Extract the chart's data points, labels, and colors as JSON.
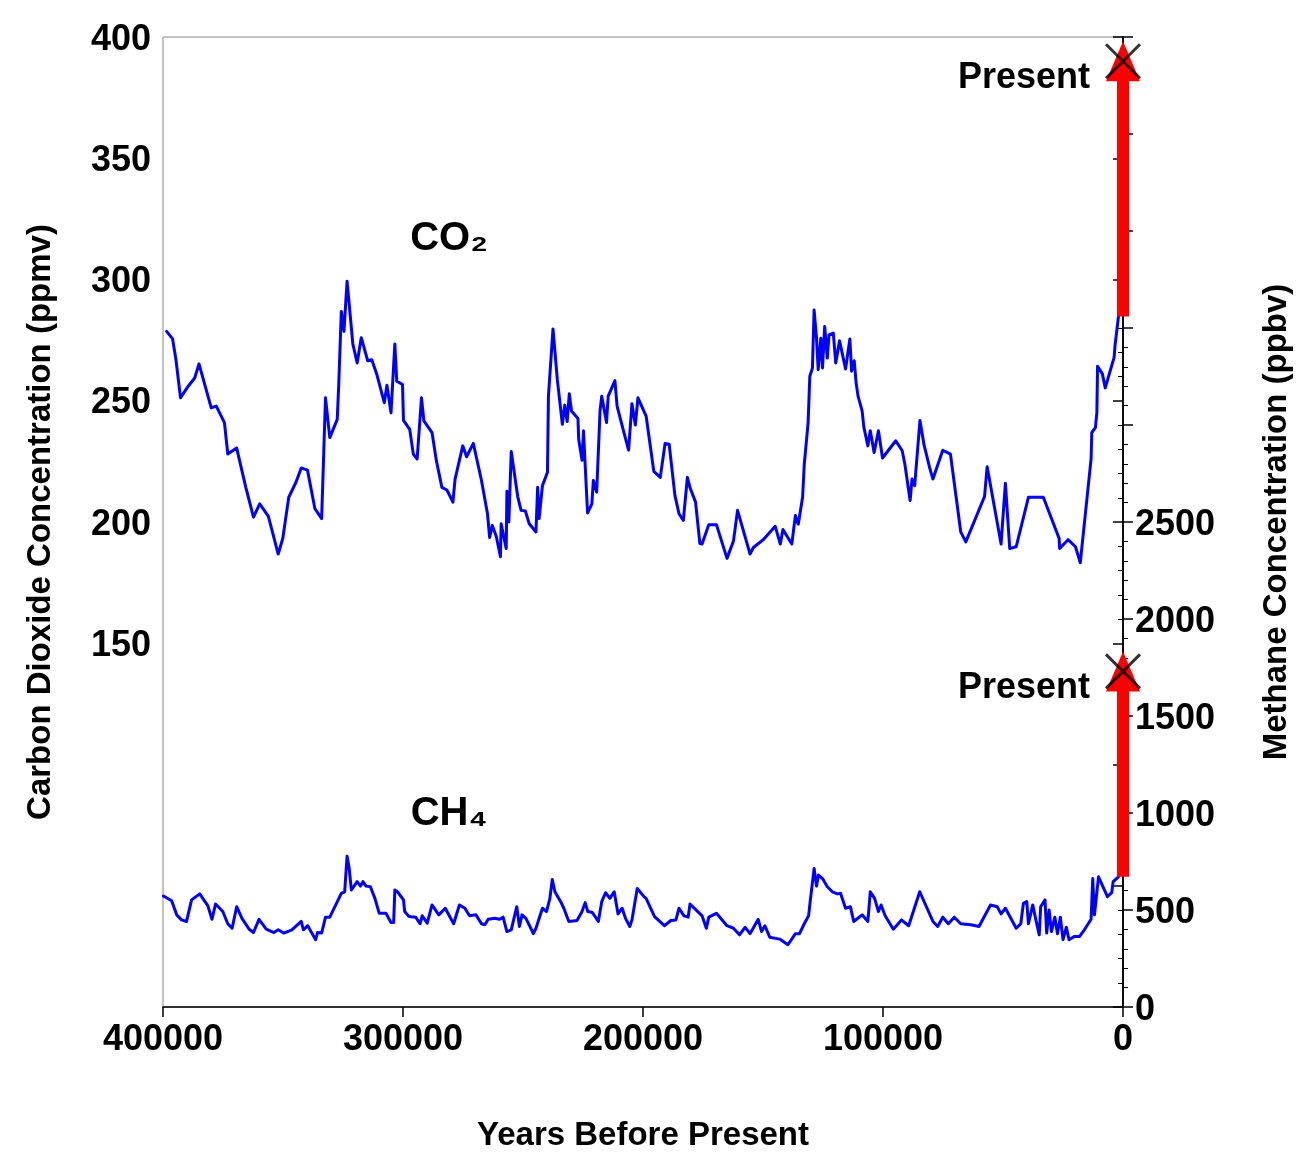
{
  "chart_data": {
    "type": "line",
    "xlabel": "Years Before Present",
    "ylabel": "Carbon Dioxide Concentration (ppmv)",
    "y2label": "Methane Concentration (ppbv)",
    "xlim": [
      400000,
      0
    ],
    "xticks": [
      400000,
      300000,
      200000,
      100000,
      0
    ],
    "ylim": [
      0,
      400
    ],
    "yticks": [
      {
        "value": 0,
        "label": null
      },
      {
        "value": 50,
        "label": null
      },
      {
        "value": 100,
        "label": null
      },
      150,
      200,
      250,
      300,
      350,
      400
    ],
    "y2lim": [
      0,
      5000
    ],
    "y2ticks": [
      0,
      500,
      1000,
      1500,
      2000,
      2500,
      {
        "value": 3000,
        "label": null
      },
      {
        "value": 3500,
        "label": null
      },
      {
        "value": 4000,
        "label": null
      },
      {
        "value": 4500,
        "label": null
      },
      {
        "value": 5000,
        "label": null
      }
    ],
    "grid": false,
    "legend": false,
    "line_style": "solid",
    "marker": "none",
    "annotations": [
      "Present",
      "Present"
    ],
    "series": [
      {
        "name": "CO₂",
        "color": "#0000ff",
        "x": [
          398500,
          396000,
          394600,
          392700,
          389500,
          386800,
          385000,
          379900,
          377800,
          374400,
          373000,
          369300,
          365500,
          362300,
          359700,
          356100,
          352000,
          350100,
          347600,
          344600,
          342400,
          339800,
          336700,
          333900,
          332300,
          330500,
          327400,
          326800,
          325700,
          324600,
          323300,
          320900,
          319100,
          317400,
          314700,
          313000,
          310800,
          307800,
          306700,
          305000,
          303400,
          302600,
          300200,
          299800,
          297200,
          295700,
          294100,
          292300,
          291300,
          287900,
          286100,
          283800,
          281700,
          279200,
          278300,
          275100,
          273500,
          270700,
          267300,
          264800,
          263900,
          262800,
          261100,
          259400,
          259100,
          257000,
          256700,
          255900,
          254900,
          252200,
          250800,
          249000,
          247400,
          244600,
          243900,
          243300,
          241900,
          239800,
          239400,
          237500,
          235700,
          233600,
          232600,
          231600,
          230700,
          229800,
          227100,
          226800,
          225400,
          224800,
          223100,
          221300,
          220700,
          219300,
          217900,
          217200,
          215200,
          214500,
          211700,
          210800,
          208300,
          206000,
          204600,
          203200,
          202100,
          198700,
          195500,
          192800,
          190800,
          189100,
          186700,
          185000,
          183200,
          181500,
          180400,
          178100,
          176300,
          175400,
          172600,
          169400,
          165000,
          162300,
          160600,
          155400,
          154000,
          149900,
          144900,
          142800,
          141700,
          138000,
          136500,
          135300,
          133500,
          132800,
          131200,
          130500,
          129400,
          128700,
          127700,
          127000,
          125900,
          125200,
          124300,
          123200,
          122500,
          120700,
          119700,
          118100,
          115600,
          113800,
          113100,
          112000,
          111200,
          110400,
          108700,
          108000,
          106300,
          105300,
          103700,
          101900,
          100200,
          94700,
          92000,
          90900,
          88700,
          87900,
          86800,
          84600,
          82900,
          80600,
          79200,
          75100,
          71900,
          67600,
          65500,
          57700,
          56600,
          50800,
          49000,
          47200,
          44500,
          39400,
          33200,
          26600,
          26400,
          22900,
          19800,
          17800,
          13300,
          13000,
          11500,
          10900,
          10600,
          8600,
          7400,
          3700,
          3300,
          1900
        ],
        "values": [
          278.6,
          275.5,
          266.9,
          251.2,
          256,
          259.4,
          265.2,
          247.1,
          247.8,
          241,
          228,
          230.5,
          214.3,
          202,
          207.5,
          202.3,
          186.8,
          193.2,
          210.2,
          216.4,
          222.3,
          221.4,
          205.5,
          201.4,
          251.2,
          234.8,
          242.3,
          256,
          286.8,
          278.6,
          299.3,
          273.4,
          265.6,
          276,
          266.5,
          266.9,
          260.5,
          249.2,
          256.4,
          245,
          273.4,
          258.1,
          256.7,
          241.9,
          238.2,
          228,
          226,
          251.2,
          241.7,
          236.9,
          225.3,
          214.3,
          213.2,
          208.2,
          217.7,
          231.4,
          226.9,
          232.4,
          217.1,
          203.4,
          193.6,
          198.6,
          193.9,
          185.7,
          199.3,
          189.1,
          212.7,
          200,
          229.1,
          210.5,
          204.8,
          204.5,
          199.3,
          195.9,
          214.3,
          201.4,
          215,
          220.5,
          251.9,
          279.6,
          258.7,
          240.3,
          248.2,
          241.4,
          252.9,
          245.8,
          242.7,
          234.1,
          225.5,
          237.6,
          203.7,
          207.5,
          217.1,
          212.3,
          245.8,
          251.9,
          241,
          251.9,
          258.3,
          247.8,
          238.2,
          229.6,
          248.8,
          240,
          251.2,
          243.7,
          220.9,
          218.4,
          232.4,
          232.1,
          211,
          203.4,
          200.7,
          218.4,
          214.1,
          208.2,
          191.1,
          190.9,
          198.9,
          198.9,
          185,
          192.2,
          204.8,
          186.8,
          189.5,
          192.7,
          198.2,
          190.9,
          196.9,
          190.9,
          202.7,
          199.1,
          210.2,
          223.9,
          241,
          260.1,
          263.5,
          287.4,
          275.8,
          262.8,
          275.8,
          263.5,
          280.6,
          267.6,
          277.2,
          277.9,
          265.6,
          274.7,
          263.1,
          275.5,
          262.2,
          266.5,
          257.4,
          251.9,
          245.8,
          239.2,
          231.4,
          237.6,
          228.7,
          237.6,
          226.4,
          233.5,
          229.4,
          223.9,
          208.9,
          217.7,
          215,
          241.9,
          231.8,
          222.5,
          217.7,
          229.6,
          228,
          195.9,
          191.8,
          210.5,
          222.8,
          190.9,
          216,
          189.1,
          189.8,
          210.2,
          210.2,
          193.2,
          189.1,
          192.7,
          189.8,
          183.2,
          226,
          236.9,
          238.9,
          245,
          264.2,
          261.1,
          255.3,
          267.9,
          273,
          284.7
        ]
      },
      {
        "name": "CH₄",
        "color": "#0000ff",
        "axis": "y2",
        "x": [
          399800,
          396400,
          394300,
          392300,
          390200,
          388100,
          384700,
          381300,
          379600,
          378100,
          375100,
          373000,
          371200,
          369300,
          367100,
          364100,
          362300,
          360000,
          357000,
          353800,
          352000,
          349700,
          346300,
          342400,
          341500,
          339700,
          336400,
          335600,
          333900,
          332300,
          330500,
          325700,
          324300,
          323300,
          322500,
          321500,
          319100,
          317700,
          316700,
          315400,
          313600,
          311700,
          309900,
          307100,
          305000,
          303900,
          303400,
          302300,
          299800,
          299300,
          297500,
          294700,
          292900,
          292000,
          289900,
          287900,
          285100,
          282400,
          278900,
          276500,
          274200,
          272300,
          269600,
          267300,
          265900,
          264500,
          261800,
          259700,
          258300,
          256700,
          254900,
          252600,
          251500,
          250400,
          248800,
          247100,
          245700,
          244600,
          241900,
          240200,
          238800,
          237800,
          236700,
          234300,
          233000,
          230900,
          227500,
          225400,
          224100,
          223000,
          221100,
          218600,
          217200,
          215600,
          213800,
          212000,
          210400,
          208700,
          207300,
          205500,
          204600,
          202400,
          199600,
          198700,
          195200,
          191100,
          188400,
          186300,
          185000,
          182900,
          181200,
          180400,
          175400,
          173600,
          172600,
          169400,
          165000,
          162300,
          159800,
          157500,
          155400,
          152000,
          150600,
          149200,
          147200,
          143100,
          139600,
          136500,
          134800,
          132800,
          131000,
          130300,
          128700,
          127700,
          126900,
          125200,
          123200,
          121100,
          119000,
          117700,
          115600,
          113600,
          112200,
          108700,
          106300,
          105300,
          103500,
          101900,
          100800,
          99100,
          95700,
          92300,
          89300,
          84700,
          79200,
          77200,
          75100,
          72800,
          70300,
          67600,
          63400,
          60000,
          55200,
          52400,
          50800,
          49000,
          44500,
          42600,
          41500,
          40100,
          39400,
          37600,
          36000,
          34900,
          34300,
          32500,
          31800,
          30800,
          29800,
          28400,
          27300,
          26100,
          25000,
          23600,
          22500,
          20200,
          18100,
          16100,
          13300,
          12600,
          11900,
          10200,
          6500,
          4700,
          4100,
          1900
        ],
        "values": [
          572,
          548,
          475,
          449,
          441,
          552,
          583,
          521,
          452,
          531,
          492,
          429,
          406,
          517,
          457,
          401,
          384,
          452,
          401,
          384,
          398,
          381,
          398,
          441,
          398,
          419,
          347,
          384,
          381,
          463,
          463,
          586,
          594,
          777,
          722,
          603,
          646,
          623,
          646,
          623,
          620,
          560,
          483,
          483,
          435,
          435,
          603,
          594,
          552,
          492,
          466,
          463,
          429,
          470,
          432,
          526,
          475,
          509,
          429,
          526,
          509,
          470,
          475,
          429,
          424,
          452,
          457,
          452,
          463,
          389,
          398,
          517,
          415,
          475,
          457,
          415,
          378,
          406,
          509,
          492,
          560,
          657,
          594,
          543,
          509,
          441,
          446,
          492,
          538,
          492,
          487,
          441,
          543,
          589,
          560,
          594,
          480,
          509,
          457,
          415,
          449,
          611,
          569,
          560,
          466,
          419,
          446,
          449,
          509,
          470,
          463,
          531,
          470,
          406,
          463,
          483,
          419,
          406,
          372,
          411,
          378,
          452,
          389,
          419,
          360,
          350,
          321,
          378,
          378,
          429,
          470,
          548,
          714,
          623,
          680,
          662,
          620,
          594,
          583,
          586,
          509,
          517,
          441,
          475,
          441,
          594,
          560,
          492,
          526,
          470,
          401,
          449,
          419,
          594,
          441,
          415,
          463,
          429,
          463,
          429,
          424,
          415,
          526,
          517,
          480,
          509,
          406,
          429,
          534,
          543,
          429,
          526,
          432,
          372,
          517,
          552,
          381,
          500,
          389,
          463,
          378,
          463,
          347,
          411,
          347,
          364,
          364,
          398,
          452,
          662,
          475,
          671,
          569,
          589,
          646,
          671
        ]
      },
      {
        "type": "scatter",
        "marker": "cross",
        "color": "#000000",
        "x": [
          0
        ],
        "values": [
          390
        ]
      },
      {
        "type": "scatter",
        "marker": "cross",
        "color": "#000000",
        "axis": "y2",
        "x": [
          0
        ],
        "values": [
          1730
        ]
      }
    ]
  }
}
